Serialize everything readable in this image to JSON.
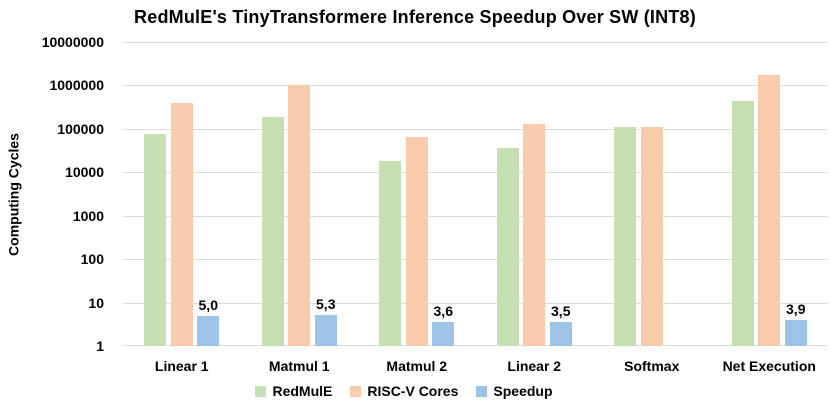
{
  "chart_data": {
    "type": "bar",
    "title": "RedMulE's TinyTransformere Inference Speedup Over SW (INT8)",
    "xlabel": "",
    "ylabel": "Computing Cycles",
    "yscale": "log",
    "ylim": [
      1,
      10000000
    ],
    "ytick_labels": [
      "10000000",
      "1000000",
      "100000",
      "10000",
      "1000",
      "100",
      "10",
      "1"
    ],
    "grid": true,
    "legend_position": "bottom",
    "categories": [
      "Linear 1",
      "Matmul 1",
      "Matmul 2",
      "Linear 2",
      "Softmax",
      "Net Execution"
    ],
    "series": [
      {
        "name": "RedMulE",
        "color": "#c6e0b4",
        "values": [
          78000,
          190000,
          18000,
          36000,
          110000,
          430000
        ]
      },
      {
        "name": "RISC-V Cores",
        "color": "#f8cbad",
        "values": [
          390000,
          1000000,
          64000,
          127000,
          110000,
          1700000
        ]
      },
      {
        "name": "Speedup",
        "color": "#9dc3e6",
        "values": [
          5.0,
          5.3,
          3.6,
          3.5,
          null,
          3.9
        ],
        "data_labels": [
          "5,0",
          "5,3",
          "3,6",
          "3,5",
          "",
          "3,9"
        ]
      }
    ]
  },
  "colors": {
    "gridline": "#dcdcdc",
    "text": "#000000",
    "background": "#ffffff"
  }
}
